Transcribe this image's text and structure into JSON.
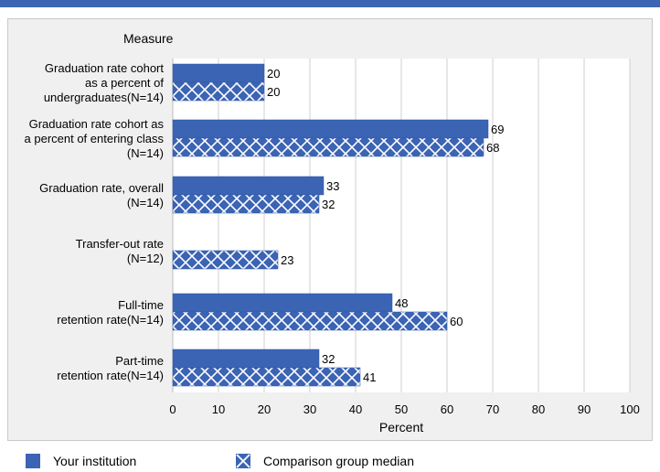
{
  "chart_data": {
    "type": "bar",
    "orientation": "horizontal",
    "y_axis_title": "Measure",
    "xlabel": "Percent",
    "xlim": [
      0,
      100
    ],
    "xticks": [
      0,
      10,
      20,
      30,
      40,
      50,
      60,
      70,
      80,
      90,
      100
    ],
    "grid": true,
    "categories": [
      [
        "Graduation rate cohort",
        "as a percent of",
        "undergraduates(N=14)"
      ],
      [
        "Graduation rate cohort as",
        "a percent of entering class",
        "(N=14)"
      ],
      [
        "Graduation rate, overall",
        "(N=14)"
      ],
      [
        "Transfer-out rate",
        "(N=12)"
      ],
      [
        "Full-time",
        "retention rate(N=14)"
      ],
      [
        "Part-time",
        "retention rate(N=14)"
      ]
    ],
    "series": [
      {
        "name": "Your institution",
        "pattern": "solid",
        "color": "#3c64b4",
        "values": [
          20,
          69,
          33,
          null,
          48,
          32
        ]
      },
      {
        "name": "Comparison group median",
        "pattern": "crosshatch",
        "color": "#3c64b4",
        "values": [
          20,
          68,
          32,
          23,
          60,
          41
        ]
      }
    ],
    "legend_position": "bottom"
  }
}
